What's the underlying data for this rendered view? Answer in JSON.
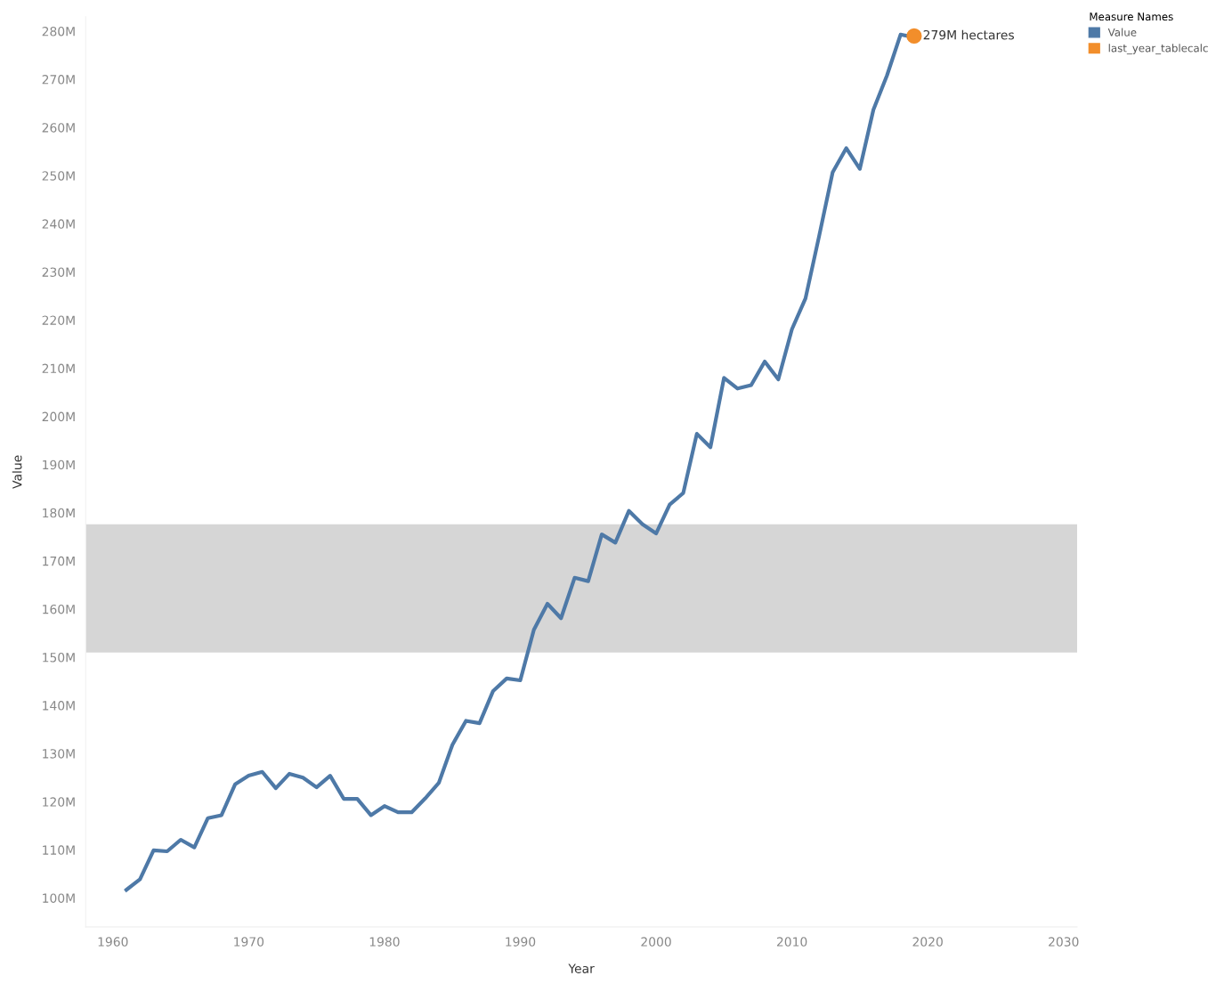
{
  "chart_data": {
    "type": "line",
    "xlabel": "Year",
    "ylabel": "Value",
    "legend_title": "Measure Names",
    "legend": "top right",
    "grid": false,
    "marker": "none",
    "line_style": "solid",
    "x": [
      1961,
      1962,
      1963,
      1964,
      1965,
      1966,
      1967,
      1968,
      1969,
      1970,
      1971,
      1972,
      1973,
      1974,
      1975,
      1976,
      1977,
      1978,
      1979,
      1980,
      1981,
      1982,
      1983,
      1984,
      1985,
      1986,
      1987,
      1988,
      1989,
      1990,
      1991,
      1992,
      1993,
      1994,
      1995,
      1996,
      1997,
      1998,
      1999,
      2000,
      2001,
      2002,
      2003,
      2004,
      2005,
      2006,
      2007,
      2008,
      2009,
      2010,
      2011,
      2012,
      2013,
      2014,
      2015,
      2016,
      2017,
      2018,
      2019
    ],
    "series": [
      {
        "name": "Value",
        "color": "#4e79a7",
        "values": [
          101.7,
          103.9,
          109.9,
          109.7,
          112.1,
          110.5,
          116.6,
          117.2,
          123.6,
          125.4,
          126.2,
          122.8,
          125.8,
          125.0,
          123.0,
          125.4,
          120.6,
          120.6,
          117.2,
          119.1,
          117.8,
          117.8,
          120.7,
          123.9,
          131.8,
          136.8,
          136.3,
          143.0,
          145.6,
          145.2,
          155.7,
          161.1,
          158.1,
          166.5,
          165.8,
          175.5,
          173.8,
          180.4,
          177.6,
          175.7,
          181.7,
          184.1,
          196.4,
          193.6,
          208.0,
          205.8,
          206.5,
          211.4,
          207.7,
          218.1,
          224.5,
          237.4,
          250.7,
          255.7,
          251.4,
          263.7,
          270.8,
          279.3,
          278.7
        ]
      },
      {
        "name": "last_year_tablecalc",
        "type": "scatter",
        "marker": "circle",
        "color": "#f28e2b",
        "x": [
          2019
        ],
        "values": [
          279
        ],
        "value_labels": [
          "279M hectares"
        ]
      }
    ],
    "bands": [
      {
        "axis": "y",
        "from": 151.0,
        "to": 177.6,
        "color": "#d6d6d6"
      }
    ],
    "xlim": [
      1958,
      2031
    ],
    "xticks": [
      1960,
      1970,
      1980,
      1990,
      2000,
      2010,
      2020,
      2030
    ],
    "ylim": [
      94,
      283
    ],
    "yticks": [
      {
        "value": 100,
        "label": "100M"
      },
      {
        "value": 110,
        "label": "110M"
      },
      {
        "value": 120,
        "label": "120M"
      },
      {
        "value": 130,
        "label": "130M"
      },
      {
        "value": 140,
        "label": "140M"
      },
      {
        "value": 150,
        "label": "150M"
      },
      {
        "value": 160,
        "label": "160M"
      },
      {
        "value": 170,
        "label": "170M"
      },
      {
        "value": 180,
        "label": "180M"
      },
      {
        "value": 190,
        "label": "190M"
      },
      {
        "value": 200,
        "label": "200M"
      },
      {
        "value": 210,
        "label": "210M"
      },
      {
        "value": 220,
        "label": "220M"
      },
      {
        "value": 230,
        "label": "230M"
      },
      {
        "value": 240,
        "label": "240M"
      },
      {
        "value": 250,
        "label": "250M"
      },
      {
        "value": 260,
        "label": "260M"
      },
      {
        "value": 270,
        "label": "270M"
      },
      {
        "value": 280,
        "label": "280M"
      }
    ]
  }
}
